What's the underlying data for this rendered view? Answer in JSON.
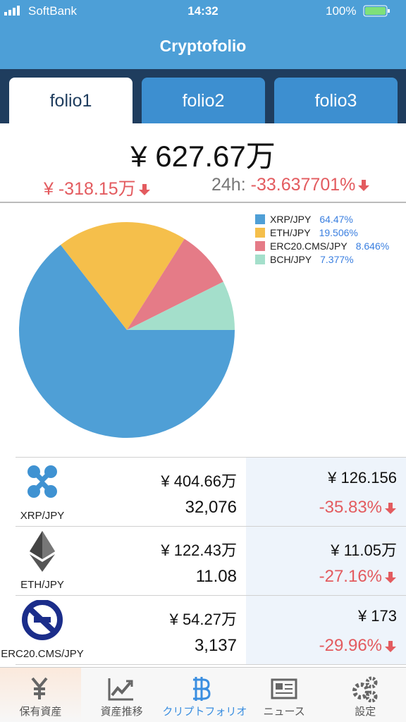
{
  "status_bar": {
    "carrier": "SoftBank",
    "time": "14:32",
    "battery": "100%"
  },
  "header": {
    "title": "Cryptofolio"
  },
  "tabs": [
    "folio1",
    "folio2",
    "folio3"
  ],
  "summary": {
    "total": "¥ 627.67万",
    "profit": "¥ -318.15万",
    "change_label": "24h:",
    "change": "-33.637701%"
  },
  "chart_data": {
    "type": "pie",
    "categories": [
      "XRP/JPY",
      "ETH/JPY",
      "ERC20.CMS/JPY",
      "BCH/JPY"
    ],
    "values": [
      64.47,
      19.506,
      8.646,
      7.377
    ],
    "value_labels": [
      "64.47%",
      "19.506%",
      "8.646%",
      "7.377%"
    ],
    "colors": [
      "#4f9fd6",
      "#f5bf4b",
      "#e57b87",
      "#a4dfcb"
    ]
  },
  "holdings": [
    {
      "name": "XRP/JPY",
      "value": "¥ 404.66万",
      "amount": "32,076",
      "price": "¥ 126.156",
      "change": "-35.83%"
    },
    {
      "name": "ETH/JPY",
      "value": "¥ 122.43万",
      "amount": "11.08",
      "price": "¥ 11.05万",
      "change": "-27.16%"
    },
    {
      "name": "ERC20.CMS/JPY",
      "value": "¥ 54.27万",
      "amount": "3,137",
      "price": "¥ 173",
      "change": "-29.96%"
    }
  ],
  "tab_bar": [
    "保有資産",
    "資産推移",
    "クリプトフォリオ",
    "ニュース",
    "設定"
  ]
}
